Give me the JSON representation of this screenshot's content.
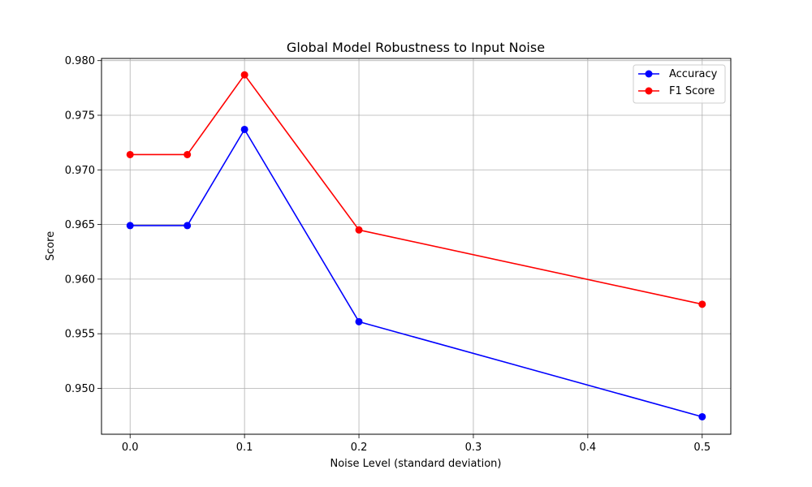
{
  "chart_data": {
    "type": "line",
    "title": "Global Model Robustness to Input Noise",
    "xlabel": "Noise Level (standard deviation)",
    "ylabel": "Score",
    "x": [
      0.0,
      0.05,
      0.1,
      0.2,
      0.5
    ],
    "xlim": [
      -0.025,
      0.525
    ],
    "ylim": [
      0.9458,
      0.9802
    ],
    "xticks": [
      0.0,
      0.1,
      0.2,
      0.3,
      0.4,
      0.5
    ],
    "xtick_labels": [
      "0.0",
      "0.1",
      "0.2",
      "0.3",
      "0.4",
      "0.5"
    ],
    "yticks": [
      0.95,
      0.955,
      0.96,
      0.965,
      0.97,
      0.975,
      0.98
    ],
    "ytick_labels": [
      "0.950",
      "0.955",
      "0.960",
      "0.965",
      "0.970",
      "0.975",
      "0.980"
    ],
    "grid": true,
    "legend_position": "top-right",
    "series": [
      {
        "name": "Accuracy",
        "color": "#0000ff",
        "marker": "circle",
        "values": [
          0.9649,
          0.9649,
          0.9737,
          0.9561,
          0.9474
        ]
      },
      {
        "name": "F1 Score",
        "color": "#ff0000",
        "marker": "circle",
        "values": [
          0.9714,
          0.9714,
          0.9787,
          0.9645,
          0.9577
        ]
      }
    ]
  }
}
